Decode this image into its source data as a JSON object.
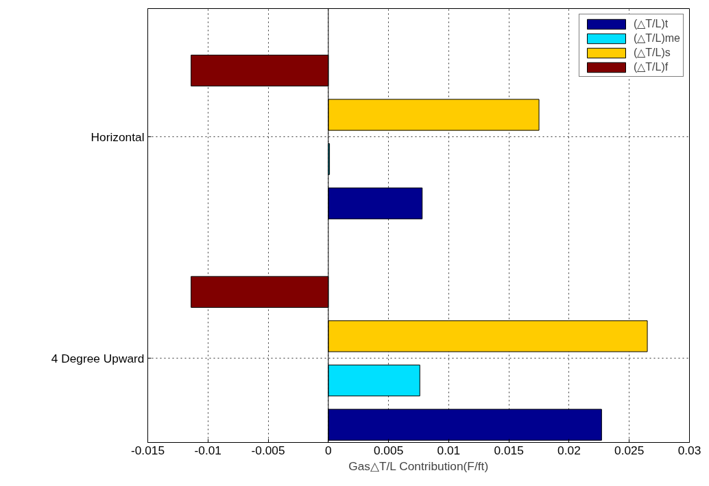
{
  "chart_data": {
    "type": "bar",
    "orientation": "horizontal",
    "xlabel": "Gas△T/L Contribution(F/ft)",
    "categories": [
      "Horizontal",
      "4 Degree Upward"
    ],
    "series": [
      {
        "name": "(△T/L)t",
        "color": "#00008f",
        "values": [
          0.0078,
          0.0227
        ]
      },
      {
        "name": "(△T/L)me",
        "color": "#00e0ff",
        "values": [
          0.0001,
          0.0076
        ]
      },
      {
        "name": "(△T/L)s",
        "color": "#ffcc00",
        "values": [
          0.0175,
          0.0265
        ]
      },
      {
        "name": "(△T/L)f",
        "color": "#800000",
        "values": [
          -0.0114,
          -0.0114
        ]
      }
    ],
    "xlim": [
      -0.015,
      0.03
    ],
    "xticks": [
      -0.015,
      -0.01,
      -0.005,
      0,
      0.005,
      0.01,
      0.015,
      0.02,
      0.025,
      0.03
    ],
    "grid": true,
    "legend": "top right",
    "line_style": "dotted"
  }
}
